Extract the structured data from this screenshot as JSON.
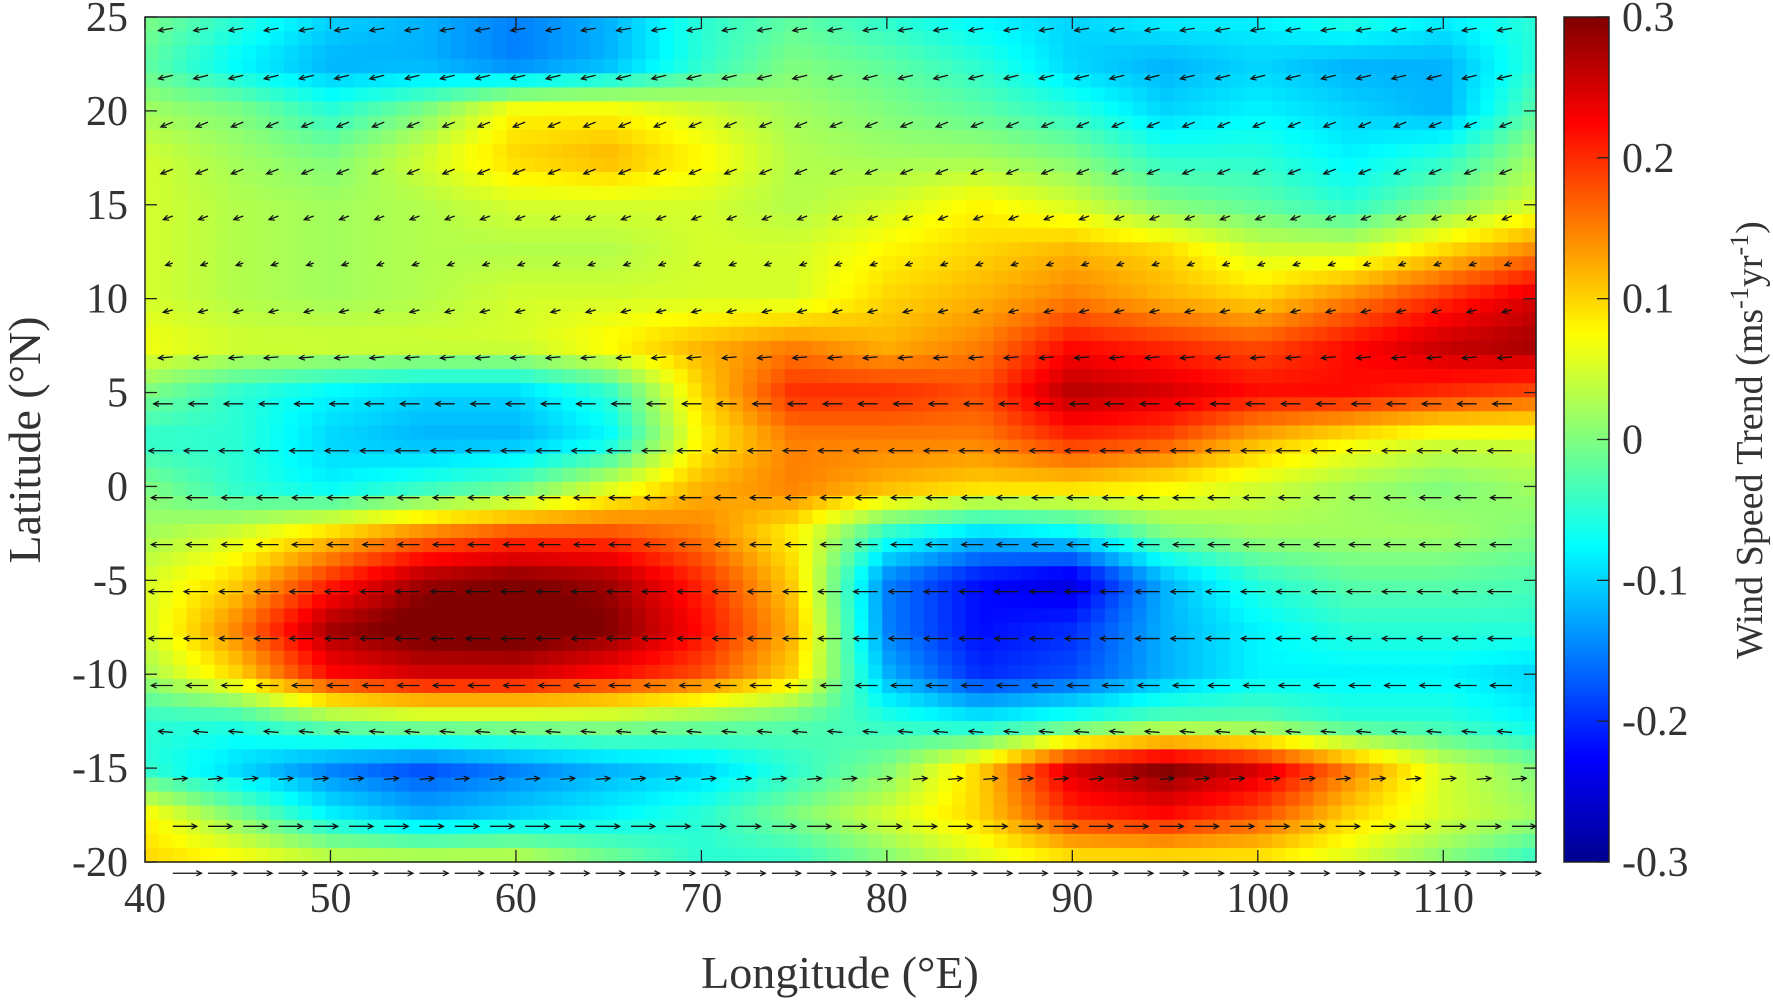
{
  "chart_data": {
    "type": "heatmap",
    "xlabel": "Longitude (°E)",
    "ylabel": "Latitude (°N)",
    "colorbar_label": "Wind Speed Trend (ms⁻¹yr⁻¹)",
    "colorbar_label_parts": {
      "main": "Wind Speed Trend (ms",
      "sup1": "-1",
      "mid": "yr",
      "sup2": "-1",
      "end": ")"
    },
    "colormap": "jet",
    "xlim": [
      40,
      115
    ],
    "ylim": [
      -20,
      25
    ],
    "clim": [
      -0.3,
      0.3
    ],
    "xticks": [
      "40",
      "50",
      "60",
      "70",
      "80",
      "90",
      "100",
      "110"
    ],
    "xtick_values": [
      40,
      50,
      60,
      70,
      80,
      90,
      100,
      110
    ],
    "yticks": [
      "25",
      "20",
      "15",
      "10",
      "5",
      "0",
      "-5",
      "-10",
      "-15",
      "-20"
    ],
    "ytick_values": [
      25,
      20,
      15,
      10,
      5,
      0,
      -5,
      -10,
      -15,
      -20
    ],
    "cticks": [
      "0.3",
      "0.2",
      "0.1",
      "0",
      "-0.1",
      "-0.2",
      "-0.3"
    ],
    "ctick_values": [
      0.3,
      0.2,
      0.1,
      0,
      -0.1,
      -0.2,
      -0.3
    ],
    "grid_lon": [
      40,
      45,
      50,
      55,
      60,
      65,
      70,
      75,
      80,
      85,
      90,
      95,
      100,
      105,
      110,
      115
    ],
    "grid_lat": [
      25,
      22.5,
      20,
      17.5,
      15,
      12.5,
      10,
      7.5,
      5,
      2.5,
      0,
      -2.5,
      -5,
      -7.5,
      -10,
      -12.5,
      -15,
      -17.5,
      -20
    ],
    "values": [
      [
        0.0,
        -0.05,
        -0.1,
        -0.12,
        -0.15,
        -0.12,
        -0.05,
        -0.02,
        -0.05,
        -0.08,
        -0.1,
        -0.08,
        -0.08,
        -0.05,
        -0.08,
        -0.05
      ],
      [
        -0.02,
        -0.08,
        -0.12,
        -0.12,
        -0.15,
        -0.12,
        -0.05,
        0,
        -0.02,
        -0.05,
        -0.1,
        -0.12,
        -0.1,
        -0.12,
        -0.12,
        -0.05
      ],
      [
        0.02,
        0.0,
        -0.05,
        0.0,
        0.08,
        0.08,
        0.05,
        0.02,
        0.0,
        -0.02,
        -0.05,
        -0.1,
        -0.08,
        -0.1,
        -0.12,
        -0.02
      ],
      [
        0.05,
        0.02,
        0.0,
        0.05,
        0.1,
        0.12,
        0.08,
        0.03,
        0.02,
        0.02,
        0.0,
        -0.05,
        -0.05,
        -0.08,
        -0.05,
        0.02
      ],
      [
        0.05,
        0.03,
        0.02,
        0.03,
        0.05,
        0.05,
        0.05,
        0.03,
        0.05,
        0.08,
        0.05,
        0.0,
        -0.02,
        -0.05,
        0.0,
        0.05
      ],
      [
        0.05,
        0.03,
        0.02,
        0.03,
        0.03,
        0.03,
        0.05,
        0.05,
        0.08,
        0.1,
        0.12,
        0.1,
        0.05,
        0.05,
        0.1,
        0.15
      ],
      [
        0.05,
        0.03,
        0.02,
        0.03,
        0.05,
        0.05,
        0.05,
        0.05,
        0.1,
        0.12,
        0.15,
        0.12,
        0.1,
        0.15,
        0.2,
        0.25
      ],
      [
        0.07,
        0.05,
        0.05,
        0.05,
        0.05,
        0.08,
        0.12,
        0.15,
        0.12,
        0.15,
        0.22,
        0.2,
        0.18,
        0.22,
        0.26,
        0.28
      ],
      [
        0.0,
        -0.05,
        -0.08,
        -0.1,
        -0.1,
        -0.05,
        0.1,
        0.2,
        0.2,
        0.18,
        0.27,
        0.25,
        0.22,
        0.22,
        0.2,
        0.18
      ],
      [
        -0.05,
        -0.05,
        -0.1,
        -0.12,
        -0.12,
        -0.08,
        0.08,
        0.15,
        0.15,
        0.15,
        0.2,
        0.18,
        0.12,
        0.08,
        0.05,
        0.05
      ],
      [
        0.0,
        -0.05,
        -0.08,
        -0.05,
        -0.02,
        0.05,
        0.12,
        0.15,
        0.12,
        0.1,
        0.1,
        0.08,
        0.05,
        0.02,
        0.0,
        0.02
      ],
      [
        0.02,
        0.05,
        0.1,
        0.15,
        0.18,
        0.18,
        0.15,
        0.08,
        -0.05,
        -0.1,
        -0.08,
        0.0,
        0.02,
        0.02,
        0.02,
        0.0
      ],
      [
        0.05,
        0.1,
        0.2,
        0.28,
        0.3,
        0.28,
        0.2,
        0.1,
        -0.15,
        -0.22,
        -0.25,
        -0.12,
        -0.05,
        -0.02,
        -0.02,
        -0.03
      ],
      [
        0.05,
        0.15,
        0.28,
        0.32,
        0.33,
        0.3,
        0.22,
        0.12,
        -0.15,
        -0.22,
        -0.2,
        -0.12,
        -0.08,
        -0.05,
        -0.05,
        -0.05
      ],
      [
        0.02,
        0.1,
        0.22,
        0.25,
        0.25,
        0.22,
        0.18,
        0.1,
        -0.12,
        -0.2,
        -0.18,
        -0.12,
        -0.08,
        -0.08,
        -0.08,
        -0.1
      ],
      [
        -0.05,
        -0.05,
        0.0,
        0.02,
        0.02,
        0.02,
        0.0,
        -0.02,
        -0.05,
        -0.08,
        -0.05,
        -0.02,
        -0.02,
        -0.05,
        -0.05,
        -0.08
      ],
      [
        -0.05,
        -0.1,
        -0.15,
        -0.18,
        -0.15,
        -0.12,
        -0.1,
        -0.05,
        0.0,
        0.1,
        0.25,
        0.3,
        0.25,
        0.15,
        0.05,
        0.0
      ],
      [
        0.08,
        0.0,
        -0.08,
        -0.12,
        -0.1,
        -0.08,
        -0.05,
        0.0,
        0.05,
        0.1,
        0.2,
        0.22,
        0.18,
        0.1,
        0.05,
        0.02
      ],
      [
        0.1,
        0.08,
        0.05,
        0.05,
        0.05,
        0.0,
        -0.05,
        -0.05,
        0.0,
        0.05,
        0.08,
        0.08,
        0.08,
        0.05,
        0.0,
        -0.05
      ]
    ],
    "wind_u_by_lat": [
      -0.6,
      -0.6,
      -0.5,
      -0.5,
      -0.4,
      -0.3,
      -0.4,
      -0.6,
      -0.8,
      -1.0,
      -0.9,
      -0.9,
      -1.0,
      -1.0,
      -0.9,
      -0.6,
      0.6,
      1.0,
      1.2
    ],
    "wind_v_by_lat": [
      -0.1,
      -0.15,
      -0.2,
      -0.2,
      -0.15,
      -0.1,
      -0.1,
      -0.05,
      0,
      0,
      0,
      0,
      0,
      0,
      0,
      0.05,
      0.05,
      0,
      0
    ]
  }
}
